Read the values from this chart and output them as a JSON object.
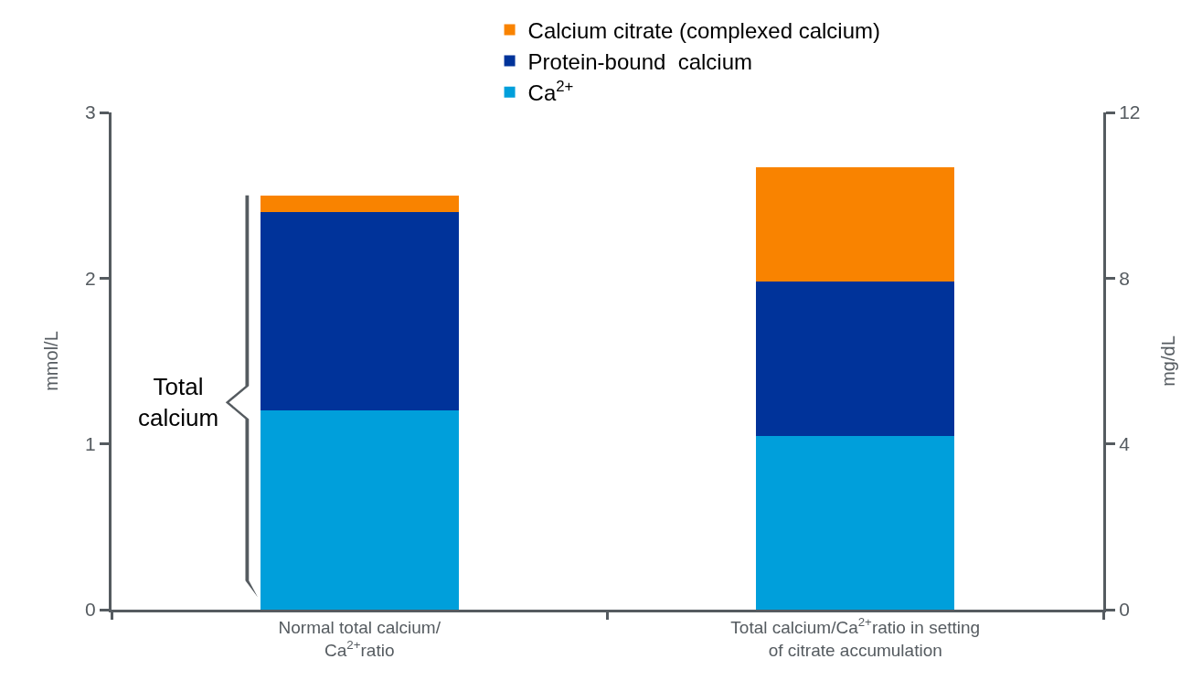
{
  "chart_data": {
    "type": "bar",
    "stacked": true,
    "categories": [
      "Normal total calcium/\nCa$^{2+}$ratio",
      "Total calcium/Ca$^{2+}$ratio in setting\nof citrate accumulation"
    ],
    "series": [
      {
        "name": "Ca$^{2+}$",
        "color": "#009fdb",
        "values": [
          1.2,
          1.05
        ]
      },
      {
        "name": "Protein-bound  calcium",
        "color": "#00339a",
        "values": [
          1.2,
          0.93
        ]
      },
      {
        "name": "Calcium citrate (complexed calcium)",
        "color": "#f98300",
        "values": [
          0.1,
          0.69
        ]
      }
    ],
    "ylabel": "mmol/L",
    "y2label": "mg/dL",
    "ylim": [
      0,
      3
    ],
    "yticks": [
      0,
      1,
      2,
      3
    ],
    "y2lim": [
      0,
      12
    ],
    "y2ticks": [
      0,
      4,
      8,
      12
    ],
    "annotations": [
      "Total\ncalcium"
    ],
    "legend": "top right"
  }
}
